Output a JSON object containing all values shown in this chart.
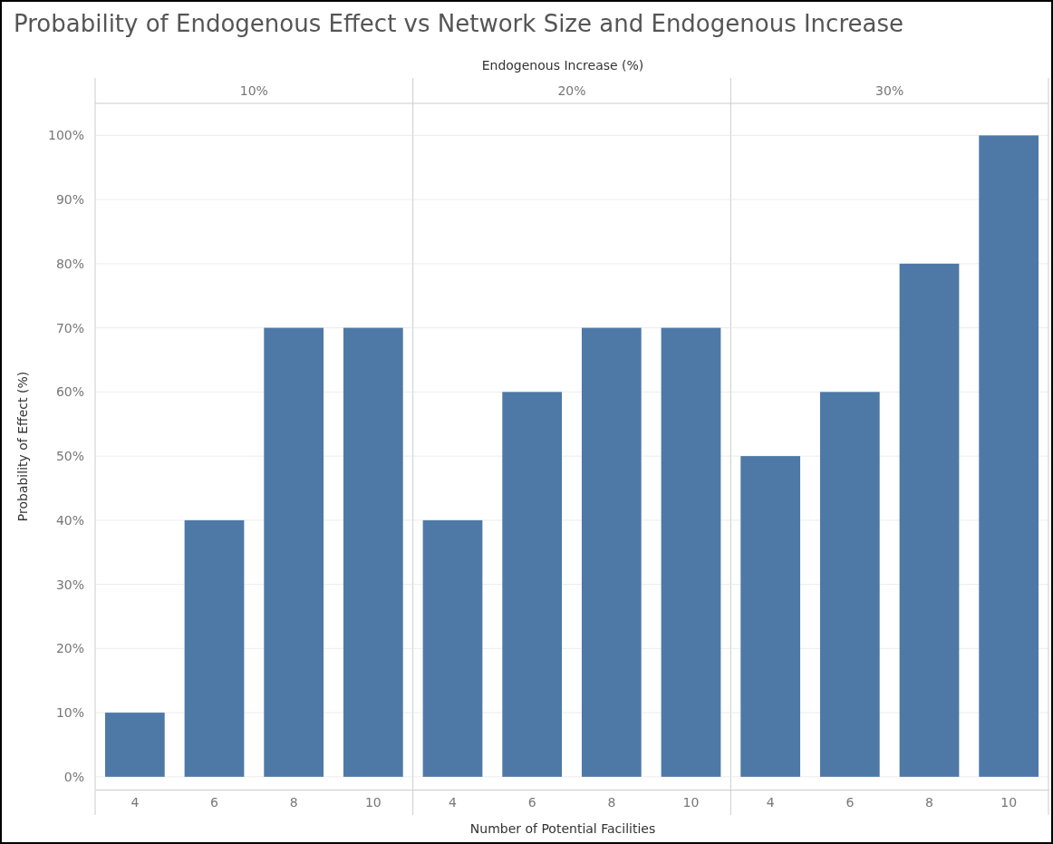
{
  "chart_data": [
    {
      "type": "bar",
      "title": "Probability of Endogenous Effect vs Network Size and Endogenous Increase",
      "subtitle": "10%",
      "ylabel": "Probability of Effect (%)",
      "categories": [
        "4",
        "6",
        "8",
        "10"
      ],
      "values": [
        10,
        40,
        70,
        70
      ],
      "color": "#4e79a7",
      "ylim": [
        -2,
        105
      ],
      "yticks": [
        {
          "value": 0,
          "label": "0%"
        },
        {
          "value": 10,
          "label": "10%"
        },
        {
          "value": 20,
          "label": "20%"
        },
        {
          "value": 30,
          "label": "30%"
        },
        {
          "value": 40,
          "label": "40%"
        },
        {
          "value": 50,
          "label": "50%"
        },
        {
          "value": 60,
          "label": "60%"
        },
        {
          "value": 70,
          "label": "70%"
        },
        {
          "value": 80,
          "label": "80%"
        },
        {
          "value": 90,
          "label": "90%"
        },
        {
          "value": 100,
          "label": "100%"
        }
      ],
      "grid": "y"
    },
    {
      "type": "bar",
      "subtitle": "20%",
      "xlabel": "Number of Potential Facilities",
      "annotations": [
        "Endogenous Increase (%)"
      ],
      "categories": [
        "4",
        "6",
        "8",
        "10"
      ],
      "values": [
        40,
        60,
        70,
        70
      ],
      "color": "#4e79a7",
      "ylim": [
        -2,
        105
      ],
      "yticks": [
        0,
        10,
        20,
        30,
        40,
        50,
        60,
        70,
        80,
        90,
        100
      ],
      "grid": "y",
      "tick_labels": "x"
    },
    {
      "type": "bar",
      "subtitle": "30%",
      "categories": [
        "4",
        "6",
        "8",
        "10"
      ],
      "values": [
        50,
        60,
        80,
        100
      ],
      "color": "#4e79a7",
      "ylim": [
        -2,
        105
      ],
      "yticks": [
        0,
        10,
        20,
        30,
        40,
        50,
        60,
        70,
        80,
        90,
        100
      ],
      "grid": "y",
      "tick_labels": "x"
    }
  ]
}
